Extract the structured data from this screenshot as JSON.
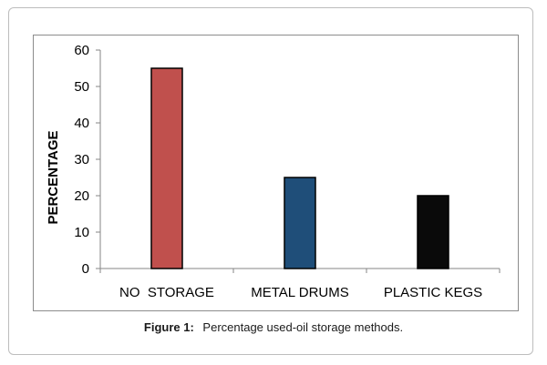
{
  "chart_data": {
    "type": "bar",
    "categories": [
      "NO  STORAGE",
      "METAL DRUMS",
      "PLASTIC KEGS"
    ],
    "values": [
      55,
      25,
      20
    ],
    "colors": [
      "#c0504d",
      "#1f4e79",
      "#0a0a0a"
    ],
    "title": "",
    "xlabel": "",
    "ylabel": "PERCENTAGE",
    "ylim": [
      0,
      60
    ],
    "yticks": [
      0,
      10,
      20,
      30,
      40,
      50,
      60
    ],
    "grid": false,
    "legend": "none"
  },
  "caption": {
    "label": "Figure 1:",
    "text": "Percentage used-oil storage methods."
  }
}
